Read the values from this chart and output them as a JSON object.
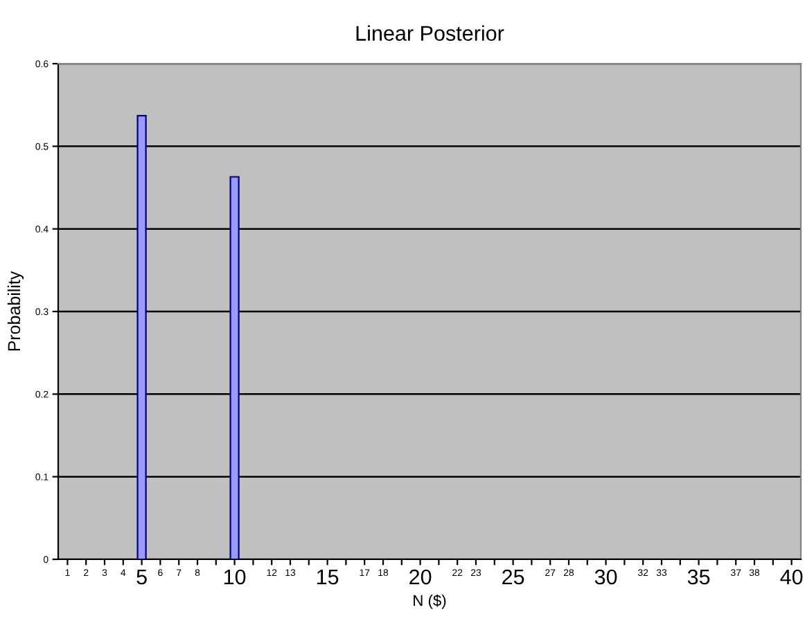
{
  "chart_data": {
    "type": "bar",
    "title": "Linear Posterior",
    "xlabel": "N ($)",
    "ylabel": "Probability",
    "categories": [
      "1",
      "2",
      "3",
      "4",
      "5",
      "6",
      "7",
      "8",
      null,
      "10",
      null,
      "12",
      "13",
      null,
      "15",
      null,
      "17",
      "18",
      null,
      "20",
      null,
      "22",
      "23",
      null,
      "25",
      null,
      "27",
      "28",
      null,
      "30",
      null,
      "32",
      "33",
      null,
      "35",
      null,
      "37",
      "38",
      null,
      "40"
    ],
    "values": [
      0,
      0,
      0,
      0,
      0.537,
      0,
      0,
      0,
      0,
      0.463,
      0,
      0,
      0,
      0,
      0,
      0,
      0,
      0,
      0,
      0,
      0,
      0,
      0,
      0,
      0,
      0,
      0,
      0,
      0,
      0,
      0,
      0,
      0,
      0,
      0,
      0,
      0,
      0,
      0,
      0
    ],
    "color": "#9999ff",
    "ylim": [
      0,
      0.6
    ],
    "yticks": [
      0,
      0.1,
      0.2,
      0.3,
      0.4,
      0.5,
      0.6
    ],
    "grid": "y",
    "legend": false
  }
}
